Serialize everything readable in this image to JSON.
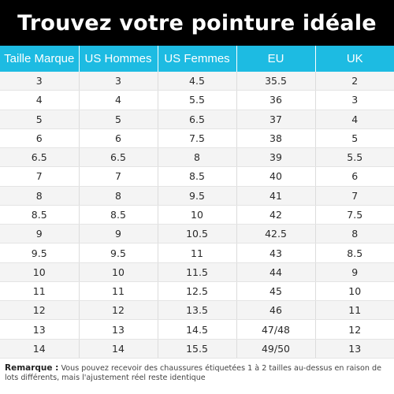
{
  "title": "Trouvez votre pointure idéale",
  "table": {
    "headers": [
      "Taille Marque",
      "US Hommes",
      "US Femmes",
      "EU",
      "UK"
    ],
    "rows": [
      [
        "3",
        "3",
        "4.5",
        "35.5",
        "2"
      ],
      [
        "4",
        "4",
        "5.5",
        "36",
        "3"
      ],
      [
        "5",
        "5",
        "6.5",
        "37",
        "4"
      ],
      [
        "6",
        "6",
        "7.5",
        "38",
        "5"
      ],
      [
        "6.5",
        "6.5",
        "8",
        "39",
        "5.5"
      ],
      [
        "7",
        "7",
        "8.5",
        "40",
        "6"
      ],
      [
        "8",
        "8",
        "9.5",
        "41",
        "7"
      ],
      [
        "8.5",
        "8.5",
        "10",
        "42",
        "7.5"
      ],
      [
        "9",
        "9",
        "10.5",
        "42.5",
        "8"
      ],
      [
        "9.5",
        "9.5",
        "11",
        "43",
        "8.5"
      ],
      [
        "10",
        "10",
        "11.5",
        "44",
        "9"
      ],
      [
        "11",
        "11",
        "12.5",
        "45",
        "10"
      ],
      [
        "12",
        "12",
        "13.5",
        "46",
        "11"
      ],
      [
        "13",
        "13",
        "14.5",
        "47/48",
        "12"
      ],
      [
        "14",
        "14",
        "15.5",
        "49/50",
        "13"
      ]
    ]
  },
  "note": {
    "label": "Remarque :",
    "text": "Vous pouvez recevoir des chaussures étiquetées 1 à 2 tailles au-dessus en raison de lots différents, mais l'ajustement réel reste identique"
  },
  "colors": {
    "title_background": "#000000",
    "header_background": "#1dbbe2",
    "row_alt_background": "#f4f4f4"
  }
}
